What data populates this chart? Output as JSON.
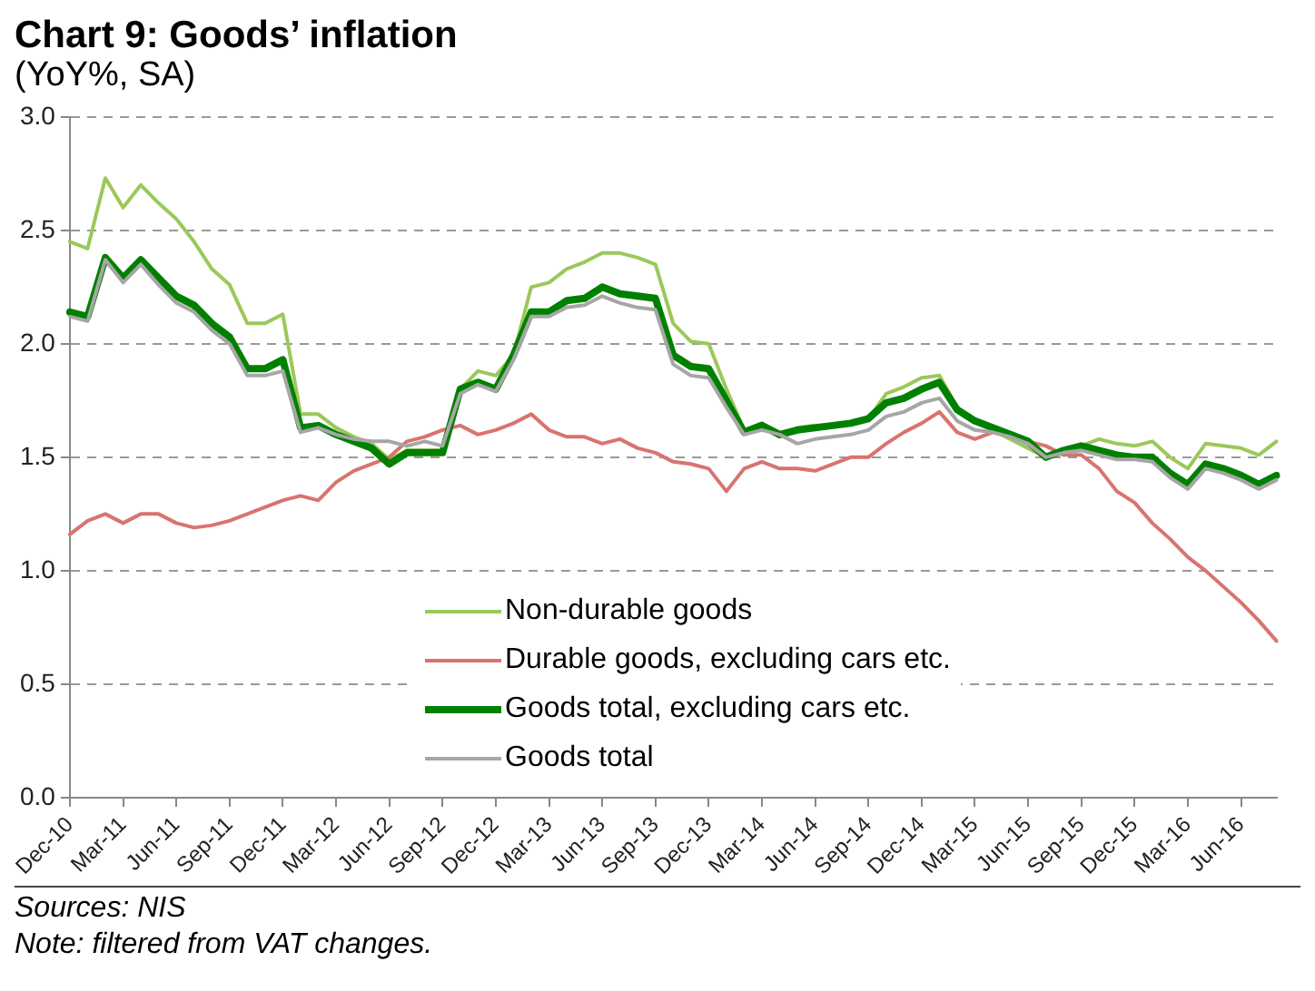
{
  "chart_data": {
    "type": "line",
    "title": "Chart 9: Goods’ inflation",
    "subtitle": "(YoY%, SA)",
    "categories": [
      "Dec-10",
      null,
      null,
      "Mar-11",
      null,
      null,
      "Jun-11",
      null,
      null,
      "Sep-11",
      null,
      null,
      "Dec-11",
      null,
      null,
      "Mar-12",
      null,
      null,
      "Jun-12",
      null,
      null,
      "Sep-12",
      null,
      null,
      "Dec-12",
      null,
      null,
      "Mar-13",
      null,
      null,
      "Jun-13",
      null,
      null,
      "Sep-13",
      null,
      null,
      "Dec-13",
      null,
      null,
      "Mar-14",
      null,
      null,
      "Jun-14",
      null,
      null,
      "Sep-14",
      null,
      null,
      "Dec-14",
      null,
      null,
      "Mar-15",
      null,
      null,
      "Jun-15",
      null,
      null,
      "Sep-15",
      null,
      null,
      "Dec-15",
      null,
      null,
      "Mar-16",
      null,
      null,
      "Jun-16",
      null,
      null
    ],
    "series": [
      {
        "name": "Non-durable goods",
        "color": "#9bc85a",
        "values": [
          2.45,
          2.42,
          2.73,
          2.6,
          2.7,
          2.62,
          2.55,
          2.45,
          2.33,
          2.26,
          2.09,
          2.09,
          2.13,
          1.69,
          1.69,
          1.63,
          1.59,
          1.56,
          1.49,
          1.53,
          1.53,
          1.53,
          1.8,
          1.88,
          1.86,
          1.95,
          2.25,
          2.27,
          2.33,
          2.36,
          2.4,
          2.4,
          2.38,
          2.35,
          2.09,
          2.01,
          2.0,
          1.8,
          1.62,
          1.65,
          1.59,
          1.63,
          1.64,
          1.64,
          1.65,
          1.67,
          1.78,
          1.81,
          1.85,
          1.86,
          1.72,
          1.66,
          1.62,
          1.58,
          1.54,
          1.5,
          1.53,
          1.55,
          1.58,
          1.56,
          1.55,
          1.57,
          1.5,
          1.45,
          1.56,
          1.55,
          1.54,
          1.51,
          1.57
        ]
      },
      {
        "name": "Durable goods, excluding cars etc.",
        "color": "#d9736e",
        "values": [
          1.16,
          1.22,
          1.25,
          1.21,
          1.25,
          1.25,
          1.21,
          1.19,
          1.2,
          1.22,
          1.25,
          1.28,
          1.31,
          1.33,
          1.31,
          1.39,
          1.44,
          1.47,
          1.5,
          1.57,
          1.59,
          1.62,
          1.64,
          1.6,
          1.62,
          1.65,
          1.69,
          1.62,
          1.59,
          1.59,
          1.56,
          1.58,
          1.54,
          1.52,
          1.48,
          1.47,
          1.45,
          1.35,
          1.45,
          1.48,
          1.45,
          1.45,
          1.44,
          1.47,
          1.5,
          1.5,
          1.56,
          1.61,
          1.65,
          1.7,
          1.61,
          1.58,
          1.61,
          1.59,
          1.57,
          1.55,
          1.51,
          1.51,
          1.45,
          1.35,
          1.3,
          1.21,
          1.14,
          1.06,
          1.0,
          0.93,
          0.86,
          0.78,
          0.69
        ]
      },
      {
        "name": "Goods total, excluding cars etc.",
        "color": "#008000",
        "values": [
          2.14,
          2.12,
          2.38,
          2.29,
          2.37,
          2.29,
          2.21,
          2.17,
          2.09,
          2.03,
          1.89,
          1.89,
          1.93,
          1.63,
          1.64,
          1.6,
          1.57,
          1.54,
          1.47,
          1.52,
          1.52,
          1.52,
          1.8,
          1.83,
          1.8,
          1.95,
          2.14,
          2.14,
          2.19,
          2.2,
          2.25,
          2.22,
          2.21,
          2.2,
          1.95,
          1.9,
          1.89,
          1.75,
          1.61,
          1.64,
          1.6,
          1.62,
          1.63,
          1.64,
          1.65,
          1.67,
          1.74,
          1.76,
          1.8,
          1.83,
          1.71,
          1.66,
          1.63,
          1.6,
          1.57,
          1.5,
          1.53,
          1.55,
          1.53,
          1.51,
          1.5,
          1.5,
          1.43,
          1.38,
          1.47,
          1.45,
          1.42,
          1.38,
          1.42
        ]
      },
      {
        "name": "Goods total",
        "color": "#a6a6a6",
        "values": [
          2.12,
          2.1,
          2.37,
          2.27,
          2.35,
          2.26,
          2.18,
          2.14,
          2.06,
          2.0,
          1.86,
          1.86,
          1.88,
          1.61,
          1.63,
          1.6,
          1.58,
          1.57,
          1.57,
          1.55,
          1.57,
          1.55,
          1.78,
          1.82,
          1.79,
          1.93,
          2.12,
          2.12,
          2.16,
          2.17,
          2.21,
          2.18,
          2.16,
          2.15,
          1.91,
          1.86,
          1.85,
          1.72,
          1.6,
          1.62,
          1.6,
          1.56,
          1.58,
          1.59,
          1.6,
          1.62,
          1.68,
          1.7,
          1.74,
          1.76,
          1.66,
          1.62,
          1.61,
          1.59,
          1.56,
          1.5,
          1.52,
          1.53,
          1.51,
          1.49,
          1.49,
          1.48,
          1.41,
          1.36,
          1.45,
          1.43,
          1.4,
          1.36,
          1.4
        ]
      }
    ],
    "ylim": [
      0,
      3
    ],
    "yticks": [
      {
        "value": 0,
        "label": "0.0"
      },
      {
        "value": 0.5,
        "label": "0.5"
      },
      {
        "value": 1,
        "label": "1.0"
      },
      {
        "value": 1.5,
        "label": "1.5"
      },
      {
        "value": 2,
        "label": "2.0"
      },
      {
        "value": 2.5,
        "label": "2.5"
      },
      {
        "value": 3,
        "label": "3.0"
      }
    ],
    "grid": "y",
    "legend": "bottom",
    "marker": "none",
    "line_style": "solid",
    "annotations": [
      "Sources: NIS",
      "Note: filtered from VAT changes."
    ]
  }
}
